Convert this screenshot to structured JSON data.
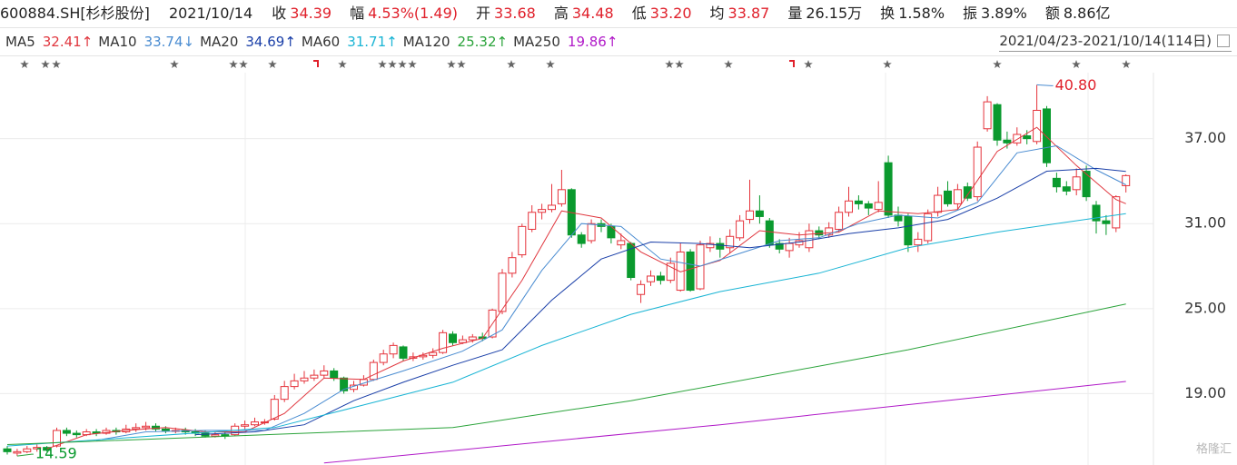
{
  "header": {
    "code": "600884.SH[杉杉股份]",
    "date": "2021/10/14",
    "items": [
      {
        "label": "收",
        "value": "34.39",
        "color": "#e0202b"
      },
      {
        "label": "幅",
        "value": "4.53%(1.49)",
        "color": "#e0202b"
      },
      {
        "label": "开",
        "value": "33.68",
        "color": "#e0202b"
      },
      {
        "label": "高",
        "value": "34.48",
        "color": "#e0202b"
      },
      {
        "label": "低",
        "value": "33.20",
        "color": "#e0202b"
      },
      {
        "label": "均",
        "value": "33.87",
        "color": "#e0202b"
      },
      {
        "label": "量",
        "value": "26.15万",
        "color": "#222222"
      },
      {
        "label": "换",
        "value": "1.58%",
        "color": "#222222"
      },
      {
        "label": "振",
        "value": "3.89%",
        "color": "#222222"
      },
      {
        "label": "额",
        "value": "8.86亿",
        "color": "#222222"
      }
    ],
    "range": "2021/04/23-2021/10/14(114日)"
  },
  "chart_data": {
    "type": "candlestick",
    "up_color": "#e5333b",
    "down_color": "#0a9a2e",
    "grid": true,
    "ylim": [
      13.96,
      41.66
    ],
    "yticks": [
      {
        "value": 19,
        "label": "19.00"
      },
      {
        "value": 25,
        "label": "25.00"
      },
      {
        "value": 31,
        "label": "31.00"
      },
      {
        "value": 37,
        "label": "37.00"
      }
    ],
    "open": [
      15.1,
      14.8,
      14.9,
      15.1,
      15.2,
      15.3,
      16.4,
      16.2,
      16.1,
      16.3,
      16.2,
      16.4,
      16.3,
      16.5,
      16.6,
      16.7,
      16.5,
      16.4,
      16.4,
      16.3,
      16.2,
      16.0,
      16.1,
      16.1,
      16.7,
      16.8,
      17.0,
      17.2,
      18.6,
      19.5,
      19.9,
      20.1,
      20.3,
      20.6,
      20.1,
      19.3,
      19.6,
      20.0,
      21.2,
      21.8,
      22.3,
      21.5,
      21.6,
      21.7,
      21.9,
      23.2,
      22.6,
      22.8,
      23.0,
      23.0,
      24.8,
      27.5,
      28.8,
      30.6,
      31.8,
      32.0,
      32.4,
      33.4,
      30.2,
      29.8,
      31.0,
      30.8,
      29.5,
      29.6,
      26.0,
      26.9,
      27.3,
      27.0,
      26.3,
      29.0,
      26.4,
      29.3,
      29.6,
      29.3,
      30.0,
      31.3,
      31.9,
      31.2,
      29.6,
      29.1,
      29.5,
      29.3,
      30.5,
      30.2,
      30.6,
      31.8,
      32.6,
      32.4,
      32.0,
      35.3,
      31.6,
      31.5,
      29.5,
      29.8,
      31.8,
      33.3,
      32.4,
      33.6,
      32.9,
      37.7,
      39.4,
      36.9,
      36.7,
      37.2,
      36.8,
      39.1,
      34.2,
      33.6,
      33.4,
      34.7,
      32.3,
      31.2,
      30.7,
      33.68
    ],
    "high": [
      15.3,
      15.1,
      15.3,
      15.4,
      15.3,
      16.6,
      16.6,
      16.4,
      16.5,
      16.5,
      16.6,
      16.6,
      16.8,
      16.9,
      17.0,
      16.9,
      16.7,
      16.6,
      16.6,
      16.5,
      16.4,
      16.3,
      16.3,
      16.9,
      17.1,
      17.3,
      17.2,
      18.9,
      19.9,
      20.4,
      20.6,
      20.7,
      21.0,
      20.8,
      20.2,
      19.9,
      20.3,
      21.4,
      22.1,
      22.6,
      22.4,
      21.9,
      21.9,
      22.2,
      23.5,
      23.4,
      23.1,
      23.2,
      23.3,
      25.0,
      27.8,
      29.0,
      31.0,
      32.3,
      32.4,
      33.8,
      34.8,
      33.5,
      30.4,
      31.3,
      31.3,
      31.0,
      30.3,
      29.7,
      27.0,
      27.7,
      27.6,
      28.6,
      29.6,
      29.2,
      29.8,
      30.1,
      30.0,
      30.6,
      31.6,
      34.1,
      33.0,
      31.4,
      29.9,
      30.0,
      30.4,
      31.0,
      30.8,
      31.1,
      32.2,
      33.6,
      33.0,
      32.6,
      34.0,
      35.8,
      32.2,
      31.7,
      30.4,
      32.0,
      33.6,
      34.0,
      33.8,
      33.9,
      36.8,
      40.0,
      39.5,
      37.5,
      37.8,
      37.6,
      40.8,
      39.3,
      34.6,
      34.0,
      34.9,
      35.1,
      32.6,
      31.6,
      33.0,
      34.48
    ],
    "low": [
      14.7,
      14.59,
      14.8,
      14.9,
      14.9,
      15.2,
      16.0,
      15.9,
      16.0,
      16.0,
      16.1,
      16.1,
      16.2,
      16.3,
      16.4,
      16.3,
      16.2,
      16.2,
      16.1,
      16.0,
      15.9,
      15.9,
      15.8,
      16.0,
      16.5,
      16.7,
      16.8,
      17.1,
      18.4,
      19.3,
      19.7,
      19.9,
      20.1,
      19.9,
      19.0,
      19.1,
      19.5,
      19.9,
      21.0,
      21.5,
      21.3,
      21.3,
      21.4,
      21.5,
      21.8,
      22.4,
      22.5,
      22.6,
      22.7,
      22.9,
      24.6,
      27.2,
      28.6,
      30.4,
      31.3,
      31.8,
      32.2,
      30.0,
      29.3,
      29.6,
      30.4,
      29.6,
      29.2,
      27.0,
      25.4,
      26.6,
      26.7,
      26.8,
      26.2,
      26.2,
      26.3,
      29.0,
      28.6,
      28.9,
      29.8,
      31.0,
      31.0,
      29.3,
      28.9,
      28.6,
      29.3,
      29.0,
      29.9,
      30.0,
      30.4,
      31.5,
      32.0,
      31.6,
      31.8,
      31.4,
      30.8,
      29.0,
      29.0,
      29.6,
      31.5,
      32.2,
      32.0,
      32.6,
      32.6,
      37.5,
      36.5,
      36.3,
      36.5,
      36.6,
      36.6,
      35.0,
      33.2,
      33.0,
      33.0,
      32.6,
      30.3,
      30.2,
      30.4,
      33.2
    ],
    "close": [
      14.9,
      14.9,
      15.1,
      15.2,
      15.0,
      16.4,
      16.2,
      16.1,
      16.3,
      16.2,
      16.4,
      16.3,
      16.5,
      16.6,
      16.7,
      16.5,
      16.4,
      16.4,
      16.3,
      16.2,
      16.0,
      16.1,
      16.0,
      16.7,
      16.8,
      17.0,
      17.0,
      18.6,
      19.5,
      19.9,
      20.1,
      20.3,
      20.6,
      20.1,
      19.2,
      19.6,
      20.0,
      21.2,
      21.8,
      22.4,
      21.5,
      21.6,
      21.7,
      21.9,
      23.3,
      22.6,
      22.8,
      23.0,
      22.9,
      24.9,
      27.5,
      28.6,
      30.8,
      31.8,
      32.0,
      32.3,
      33.4,
      30.2,
      29.6,
      31.0,
      30.8,
      30.0,
      29.8,
      27.2,
      26.7,
      27.3,
      27.0,
      28.2,
      29.0,
      26.3,
      29.5,
      29.6,
      29.2,
      30.1,
      31.2,
      31.9,
      31.5,
      29.5,
      29.2,
      29.6,
      29.8,
      30.5,
      30.2,
      30.7,
      31.8,
      32.6,
      32.4,
      32.1,
      32.5,
      31.6,
      31.2,
      29.5,
      29.9,
      31.7,
      33.0,
      32.4,
      33.4,
      32.8,
      36.4,
      39.6,
      36.9,
      36.7,
      37.3,
      37.0,
      39.0,
      35.3,
      33.6,
      33.3,
      34.3,
      32.9,
      31.2,
      31.0,
      32.9,
      34.39
    ],
    "series": [
      {
        "name": "MA5",
        "color": "#e0363e",
        "last_label": "32.41↑",
        "x": [
          4,
          8,
          12,
          16,
          20,
          24,
          28,
          32,
          36,
          40,
          44,
          48,
          52,
          56,
          60,
          64,
          68,
          72,
          76,
          80,
          84,
          88,
          92,
          96,
          100,
          104,
          108,
          112,
          113
        ],
        "values": [
          15.1,
          16.1,
          16.4,
          16.6,
          16.3,
          16.3,
          17.6,
          20.1,
          20.0,
          21.3,
          22.2,
          22.9,
          27.0,
          31.9,
          31.4,
          29.0,
          27.6,
          28.4,
          30.5,
          30.2,
          30.4,
          31.9,
          31.7,
          32.0,
          36.1,
          37.8,
          35.1,
          32.7,
          32.41
        ]
      },
      {
        "name": "MA10",
        "color": "#4a8cd1",
        "last_label": "33.74↓",
        "x": [
          9,
          14,
          20,
          26,
          30,
          34,
          40,
          46,
          50,
          54,
          58,
          62,
          66,
          70,
          74,
          78,
          82,
          86,
          90,
          94,
          98,
          102,
          106,
          110,
          113
        ],
        "values": [
          15.7,
          16.3,
          16.4,
          16.4,
          17.6,
          19.3,
          20.6,
          22.0,
          23.5,
          27.7,
          31.0,
          30.8,
          28.5,
          28.0,
          28.9,
          29.8,
          30.0,
          31.0,
          31.6,
          31.4,
          32.5,
          36.0,
          36.5,
          34.8,
          33.74
        ]
      },
      {
        "name": "MA20",
        "color": "#1a3fa8",
        "last_label": "34.69↑",
        "x": [
          19,
          25,
          30,
          35,
          40,
          45,
          50,
          55,
          60,
          65,
          70,
          75,
          80,
          85,
          90,
          95,
          100,
          105,
          110,
          113
        ],
        "values": [
          16.1,
          16.3,
          16.8,
          18.5,
          19.8,
          21.0,
          22.1,
          25.6,
          28.5,
          29.7,
          29.6,
          29.3,
          29.7,
          30.3,
          30.7,
          31.3,
          32.8,
          34.7,
          34.9,
          34.69
        ]
      },
      {
        "name": "MA60",
        "color": "#19b4d4",
        "last_label": "31.71↑",
        "x": [
          0,
          27,
          36,
          45,
          54,
          63,
          72,
          82,
          91,
          100,
          113
        ],
        "values": [
          15.3,
          16.6,
          18.2,
          19.8,
          22.4,
          24.6,
          26.2,
          27.5,
          29.3,
          30.4,
          31.71
        ]
      },
      {
        "name": "MA120",
        "color": "#2aa33a",
        "last_label": "25.32↑",
        "x": [
          0,
          45,
          63,
          91,
          113
        ],
        "values": [
          15.4,
          16.6,
          18.5,
          22.1,
          25.32
        ]
      },
      {
        "name": "MA250",
        "color": "#b019c8",
        "last_label": "19.86↑",
        "x": [
          32,
          72,
          113
        ],
        "values": [
          14.1,
          16.8,
          19.86
        ]
      }
    ],
    "annotations": [
      {
        "label": "40.80",
        "x": 104,
        "value": 40.8
      },
      {
        "label": "14.59",
        "x": 1,
        "value": 14.59
      }
    ],
    "watermark": "格隆汇"
  }
}
